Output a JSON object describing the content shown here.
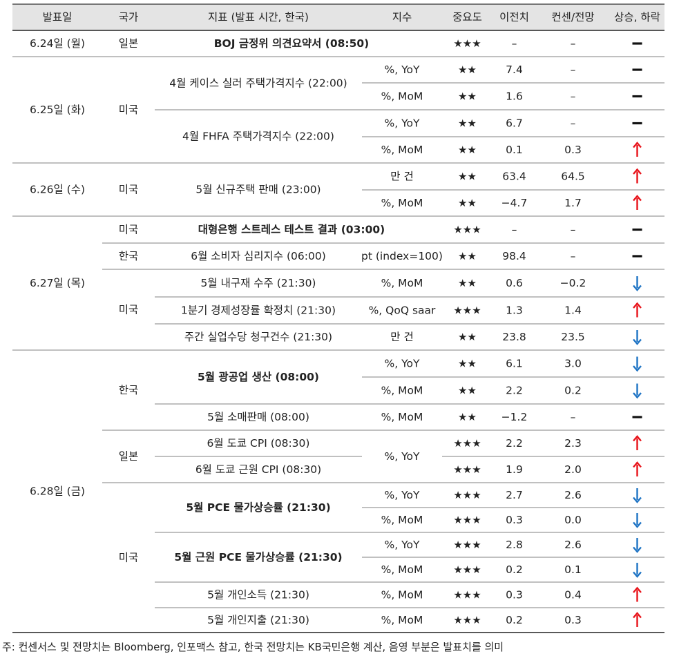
{
  "header": [
    "발표일",
    "국가",
    "지표 (발표 시간, 한국)",
    "지수",
    "중요도",
    "이전치",
    "컨센/전망",
    "상승, 하락"
  ],
  "colors": {
    "up": "#e8141b",
    "down": "#1f74c4",
    "flat": "#111111",
    "rule": "#9a9a9a",
    "shade": "#e4e4e4"
  },
  "rows": [
    {
      "unit": "",
      "imp": "★★★",
      "prev": "–",
      "cons": "–",
      "trend": "flat"
    },
    {
      "unit": "%, YoY",
      "imp": "★★",
      "prev": "7.4",
      "cons": "–",
      "trend": "flat"
    },
    {
      "unit": "%, MoM",
      "imp": "★★",
      "prev": "1.6",
      "cons": "–",
      "trend": "flat"
    },
    {
      "unit": "%, YoY",
      "imp": "★★",
      "prev": "6.7",
      "cons": "–",
      "trend": "flat"
    },
    {
      "unit": "%, MoM",
      "imp": "★★",
      "prev": "0.1",
      "cons": "0.3",
      "trend": "up"
    },
    {
      "unit": "만 건",
      "imp": "★★",
      "prev": "63.4",
      "cons": "64.5",
      "trend": "up"
    },
    {
      "unit": "%, MoM",
      "imp": "★★",
      "prev": "−4.7",
      "cons": "1.7",
      "trend": "up"
    },
    {
      "unit": "",
      "imp": "★★★",
      "prev": "–",
      "cons": "–",
      "trend": "flat"
    },
    {
      "unit": "pt (index=100)",
      "imp": "★★",
      "prev": "98.4",
      "cons": "–",
      "trend": "flat"
    },
    {
      "unit": "%, MoM",
      "imp": "★★",
      "prev": "0.6",
      "cons": "−0.2",
      "trend": "down"
    },
    {
      "unit": "%, QoQ saar",
      "imp": "★★★",
      "prev": "1.3",
      "cons": "1.4",
      "trend": "up"
    },
    {
      "unit": "만 건",
      "imp": "★★",
      "prev": "23.8",
      "cons": "23.5",
      "trend": "down"
    },
    {
      "unit": "%, YoY",
      "imp": "★★",
      "prev": "6.1",
      "cons": "3.0",
      "trend": "down"
    },
    {
      "unit": "%, MoM",
      "imp": "★★",
      "prev": "2.2",
      "cons": "0.2",
      "trend": "down"
    },
    {
      "unit": "%, MoM",
      "imp": "★★",
      "prev": "−1.2",
      "cons": "–",
      "trend": "flat"
    },
    {
      "unit": "",
      "imp": "★★★",
      "prev": "2.2",
      "cons": "2.3",
      "trend": "up"
    },
    {
      "unit": "",
      "imp": "★★★",
      "prev": "1.9",
      "cons": "2.0",
      "trend": "up"
    },
    {
      "unit": "%, YoY",
      "imp": "★★★",
      "prev": "2.7",
      "cons": "2.6",
      "trend": "down"
    },
    {
      "unit": "%, MoM",
      "imp": "★★★",
      "prev": "0.3",
      "cons": "0.0",
      "trend": "down"
    },
    {
      "unit": "%, YoY",
      "imp": "★★★",
      "prev": "2.8",
      "cons": "2.6",
      "trend": "down"
    },
    {
      "unit": "%, MoM",
      "imp": "★★★",
      "prev": "0.2",
      "cons": "0.1",
      "trend": "down"
    },
    {
      "unit": "%, MoM",
      "imp": "★★★",
      "prev": "0.3",
      "cons": "0.4",
      "trend": "up"
    },
    {
      "unit": "%, MoM",
      "imp": "★★★",
      "prev": "0.2",
      "cons": "0.3",
      "trend": "up"
    }
  ],
  "dates": [
    {
      "label": "6.24일 (월)",
      "from": 0,
      "to": 0
    },
    {
      "label": "6.25일 (화)",
      "from": 1,
      "to": 4
    },
    {
      "label": "6.26일 (수)",
      "from": 5,
      "to": 6
    },
    {
      "label": "6.27일 (목)",
      "from": 7,
      "to": 11
    },
    {
      "label": "6.28일 (금)",
      "from": 12,
      "to": 22
    }
  ],
  "countries": [
    {
      "label": "일본",
      "from": 0,
      "to": 0
    },
    {
      "label": "미국",
      "from": 1,
      "to": 4
    },
    {
      "label": "미국",
      "from": 5,
      "to": 6
    },
    {
      "label": "미국",
      "from": 7,
      "to": 7
    },
    {
      "label": "한국",
      "from": 8,
      "to": 8
    },
    {
      "label": "미국",
      "from": 9,
      "to": 11
    },
    {
      "label": "한국",
      "from": 12,
      "to": 14
    },
    {
      "label": "일본",
      "from": 15,
      "to": 16
    },
    {
      "label": "미국",
      "from": 17,
      "to": 22
    }
  ],
  "indicators": [
    {
      "label": "BOJ 금정위 의견요약서 (08:50)",
      "from": 0,
      "to": 0,
      "bold": true,
      "wide": true
    },
    {
      "label": "4월 케이스 실러 주택가격지수 (22:00)",
      "from": 1,
      "to": 2,
      "bold": false,
      "wide": false
    },
    {
      "label": "4월 FHFA 주택가격지수 (22:00)",
      "from": 3,
      "to": 4,
      "bold": false,
      "wide": false
    },
    {
      "label": "5월 신규주택 판매 (23:00)",
      "from": 5,
      "to": 6,
      "bold": false,
      "wide": false
    },
    {
      "label": "대형은행 스트레스 테스트 결과 (03:00)",
      "from": 7,
      "to": 7,
      "bold": true,
      "wide": true
    },
    {
      "label": "6월 소비자 심리지수 (06:00)",
      "from": 8,
      "to": 8,
      "bold": false,
      "wide": false
    },
    {
      "label": "5월 내구재 수주 (21:30)",
      "from": 9,
      "to": 9,
      "bold": false,
      "wide": false
    },
    {
      "label": "1분기 경제성장률 확정치 (21:30)",
      "from": 10,
      "to": 10,
      "bold": false,
      "wide": false
    },
    {
      "label": "주간 실업수당 청구건수 (21:30)",
      "from": 11,
      "to": 11,
      "bold": false,
      "wide": false
    },
    {
      "label": "5월 광공업 생산 (08:00)",
      "from": 12,
      "to": 13,
      "bold": true,
      "wide": false
    },
    {
      "label": "5월 소매판매 (08:00)",
      "from": 14,
      "to": 14,
      "bold": false,
      "wide": false
    },
    {
      "label": "6월 도쿄 CPI (08:30)",
      "from": 15,
      "to": 15,
      "bold": false,
      "wide": false
    },
    {
      "label": "6월 도쿄 근원 CPI (08:30)",
      "from": 16,
      "to": 16,
      "bold": false,
      "wide": false
    },
    {
      "label": "5월 PCE 물가상승률 (21:30)",
      "from": 17,
      "to": 18,
      "bold": true,
      "wide": false
    },
    {
      "label": "5월 근원 PCE 물가상승률 (21:30)",
      "from": 19,
      "to": 20,
      "bold": true,
      "wide": false
    },
    {
      "label": "5월 개인소득 (21:30)",
      "from": 21,
      "to": 21,
      "bold": false,
      "wide": false
    },
    {
      "label": "5월 개인지출 (21:30)",
      "from": 22,
      "to": 22,
      "bold": false,
      "wide": false
    }
  ],
  "merged_units": [
    {
      "label": "%, YoY",
      "from": 15,
      "to": 16
    }
  ],
  "footnote": "주: 컨센서스 및 전망치는 Bloomberg, 인포맥스 참고, 한국 전망치는 KB국민은행 계산, 음영 부분은 발표치를 의미"
}
